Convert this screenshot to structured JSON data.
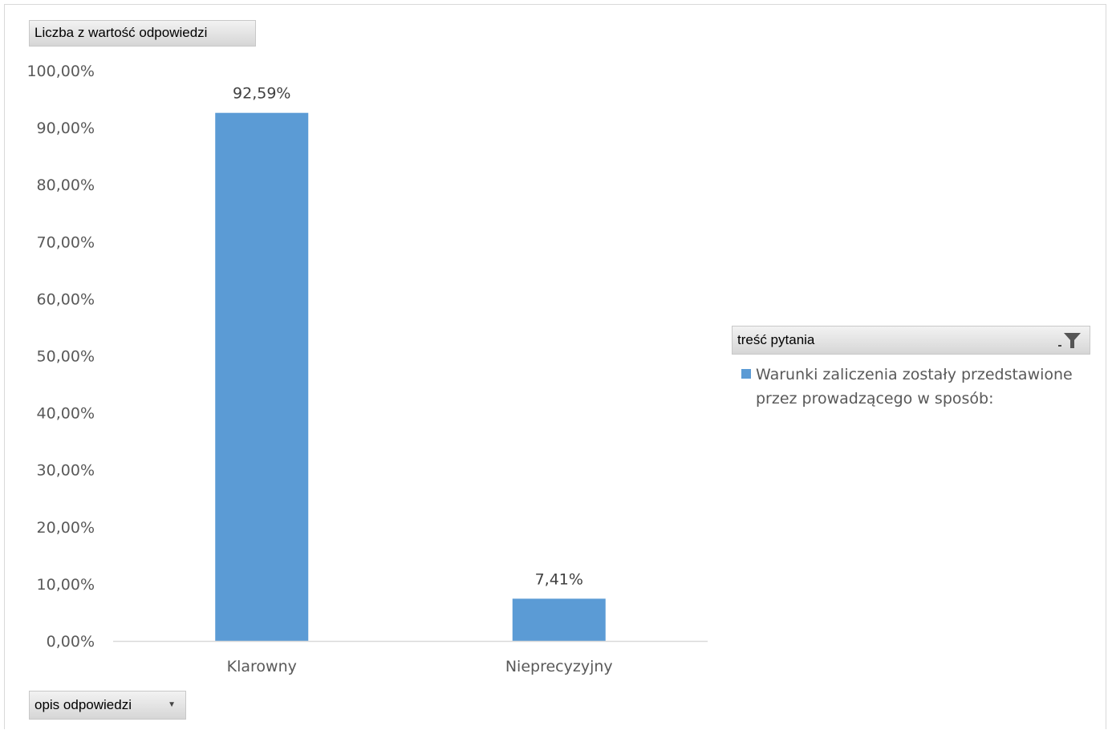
{
  "colors": {
    "bar": "#5b9bd5",
    "axis_line": "#d9d9d9"
  },
  "value_field": {
    "label": "Liczba z wartość odpowiedzi"
  },
  "axis_field": {
    "label": "opis odpowiedzi",
    "icon": "dropdown-arrow-icon"
  },
  "legend_field": {
    "label": "treść pytania",
    "icon": "filter-icon"
  },
  "chart_data": {
    "type": "bar",
    "categories": [
      "Klarowny",
      "Nieprecyzyjny"
    ],
    "series": [
      {
        "name": "Warunki zaliczenia zostały przedstawione przez prowadzącego w sposób:",
        "values": [
          92.59,
          7.41
        ],
        "labels": [
          "92,59%",
          "7,41%"
        ]
      }
    ],
    "ylim": [
      0,
      100
    ],
    "yticks": [
      0,
      10,
      20,
      30,
      40,
      50,
      60,
      70,
      80,
      90,
      100
    ],
    "ytick_labels": [
      "0,00%",
      "10,00%",
      "20,00%",
      "30,00%",
      "40,00%",
      "50,00%",
      "60,00%",
      "70,00%",
      "80,00%",
      "90,00%",
      "100,00%"
    ],
    "grid": false,
    "legend_position": "right"
  }
}
